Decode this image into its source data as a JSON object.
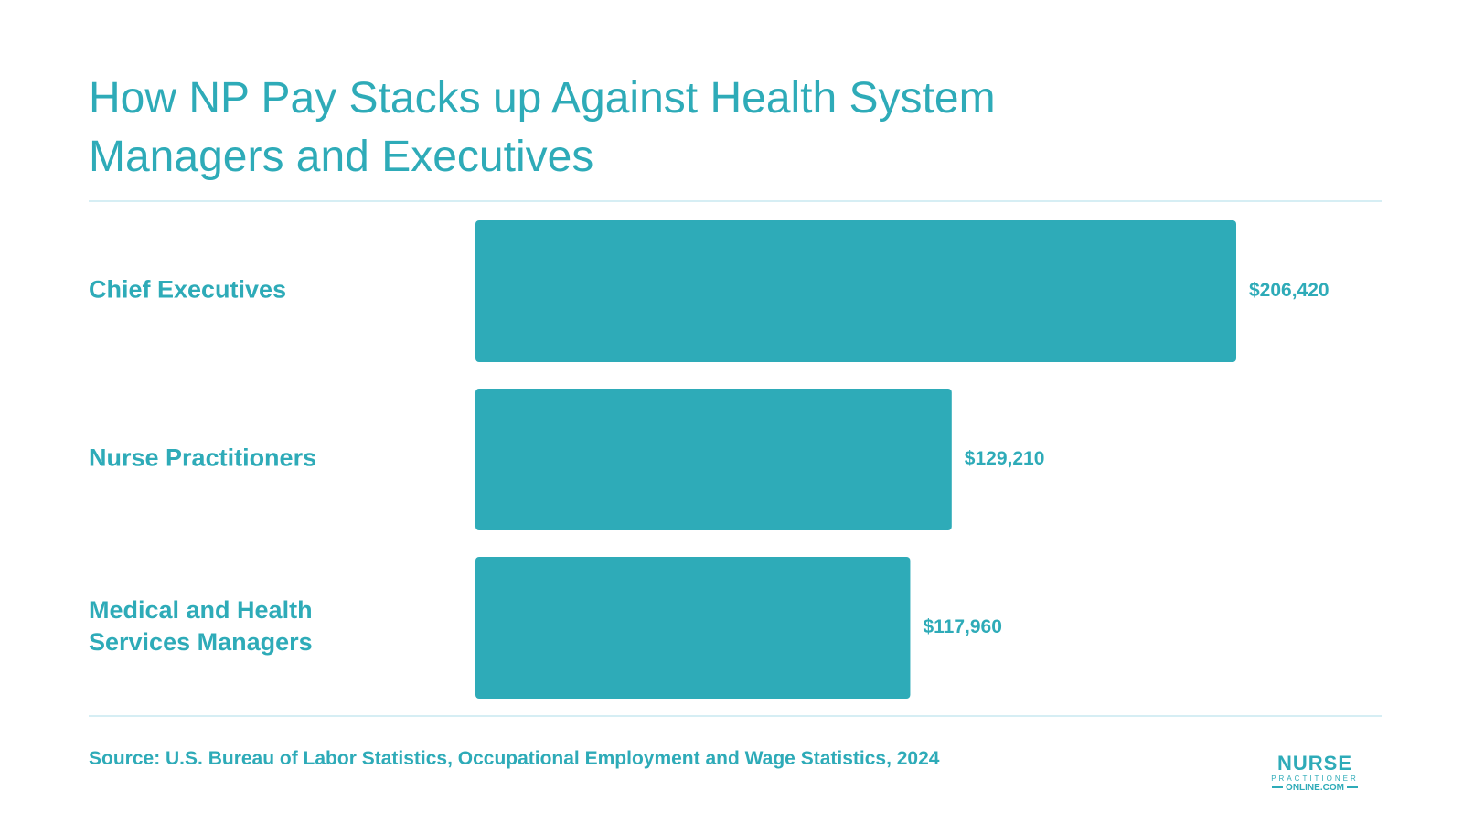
{
  "colors": {
    "accent": "#2eabb8",
    "rule": "#d6eef4"
  },
  "chart_data": {
    "type": "bar",
    "orientation": "horizontal",
    "title_lines": [
      "How NP Pay Stacks up Against Health System",
      "Managers and Executives"
    ],
    "categories": [
      [
        "Chief Executives"
      ],
      [
        "Nurse Practitioners"
      ],
      [
        "Medical and Health",
        "Services Managers"
      ]
    ],
    "values": [
      206420,
      129210,
      117960
    ],
    "value_labels": [
      "$206,420",
      "$129,210",
      "$117,960"
    ],
    "xlim": [
      0,
      206420
    ],
    "grid": false,
    "legend": "none"
  },
  "source": "Source: U.S. Bureau of Labor Statistics, Occupational Employment and Wage Statistics, 2024",
  "logo": {
    "main": "NURSE",
    "sub": "PRACTITIONER",
    "domain": "ONLINE.COM"
  }
}
